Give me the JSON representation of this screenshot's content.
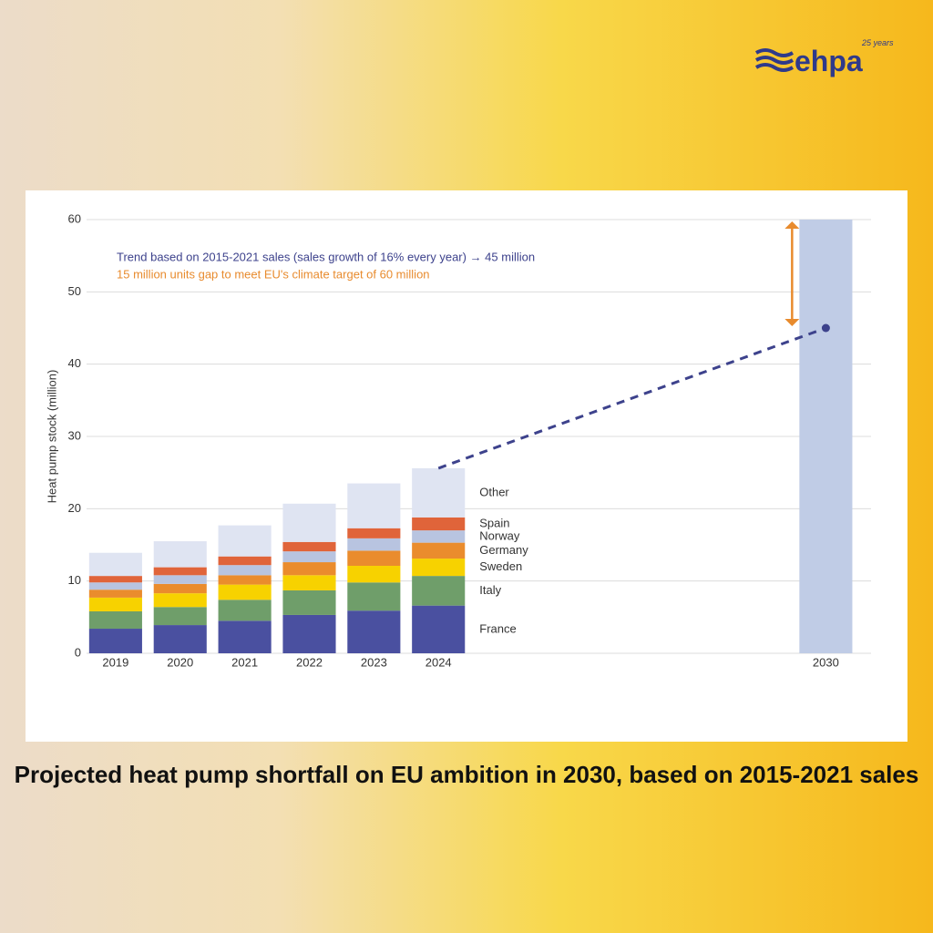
{
  "brand": {
    "name": "ehpa",
    "tagline": "25 years"
  },
  "chart_data": {
    "type": "stacked-bar",
    "title": "Projected heat pump shortfall on EU ambition in 2030, based on 2015-2021 sales",
    "y_label": "Heat pump stock (million)",
    "x": [
      2019,
      2020,
      2021,
      2022,
      2023,
      2024
    ],
    "xlim": [
      2018.55,
      2030.7
    ],
    "ylim": [
      0,
      60
    ],
    "yticks": [
      0,
      10,
      20,
      30,
      40,
      50,
      60
    ],
    "grid": true,
    "series": [
      {
        "name": "France",
        "color": "#4a50a0",
        "values": [
          3.4,
          3.9,
          4.5,
          5.3,
          5.9,
          6.6
        ]
      },
      {
        "name": "Italy",
        "color": "#6f9e6a",
        "values": [
          2.4,
          2.5,
          2.9,
          3.4,
          3.9,
          4.1
        ]
      },
      {
        "name": "Sweden",
        "color": "#f7d200",
        "values": [
          1.9,
          1.9,
          2.1,
          2.1,
          2.3,
          2.4
        ]
      },
      {
        "name": "Germany",
        "color": "#ea8c2d",
        "values": [
          1.1,
          1.3,
          1.3,
          1.8,
          2.1,
          2.2
        ]
      },
      {
        "name": "Norway",
        "color": "#b8c4e0",
        "values": [
          1.0,
          1.2,
          1.4,
          1.5,
          1.7,
          1.7
        ]
      },
      {
        "name": "Spain",
        "color": "#e0643a",
        "values": [
          0.9,
          1.1,
          1.2,
          1.3,
          1.4,
          1.8
        ]
      },
      {
        "name": "Other",
        "color": "#dfe4f2",
        "values": [
          3.2,
          3.6,
          4.3,
          5.3,
          6.2,
          6.8
        ]
      }
    ],
    "target": {
      "x": 2030,
      "value": 60,
      "color": "#c0cce6"
    },
    "trend": {
      "label": "Trend based on 2015-2021 sales (sales growth of 16% every year) → 45 million",
      "color": "#3d428c",
      "x": [
        2024,
        2030
      ],
      "values": [
        25.6,
        45
      ]
    },
    "gap": {
      "label": "15 million units gap to meet EU's climate target of 60 million",
      "color": "#e88b2e",
      "values": [
        45,
        60
      ]
    }
  }
}
